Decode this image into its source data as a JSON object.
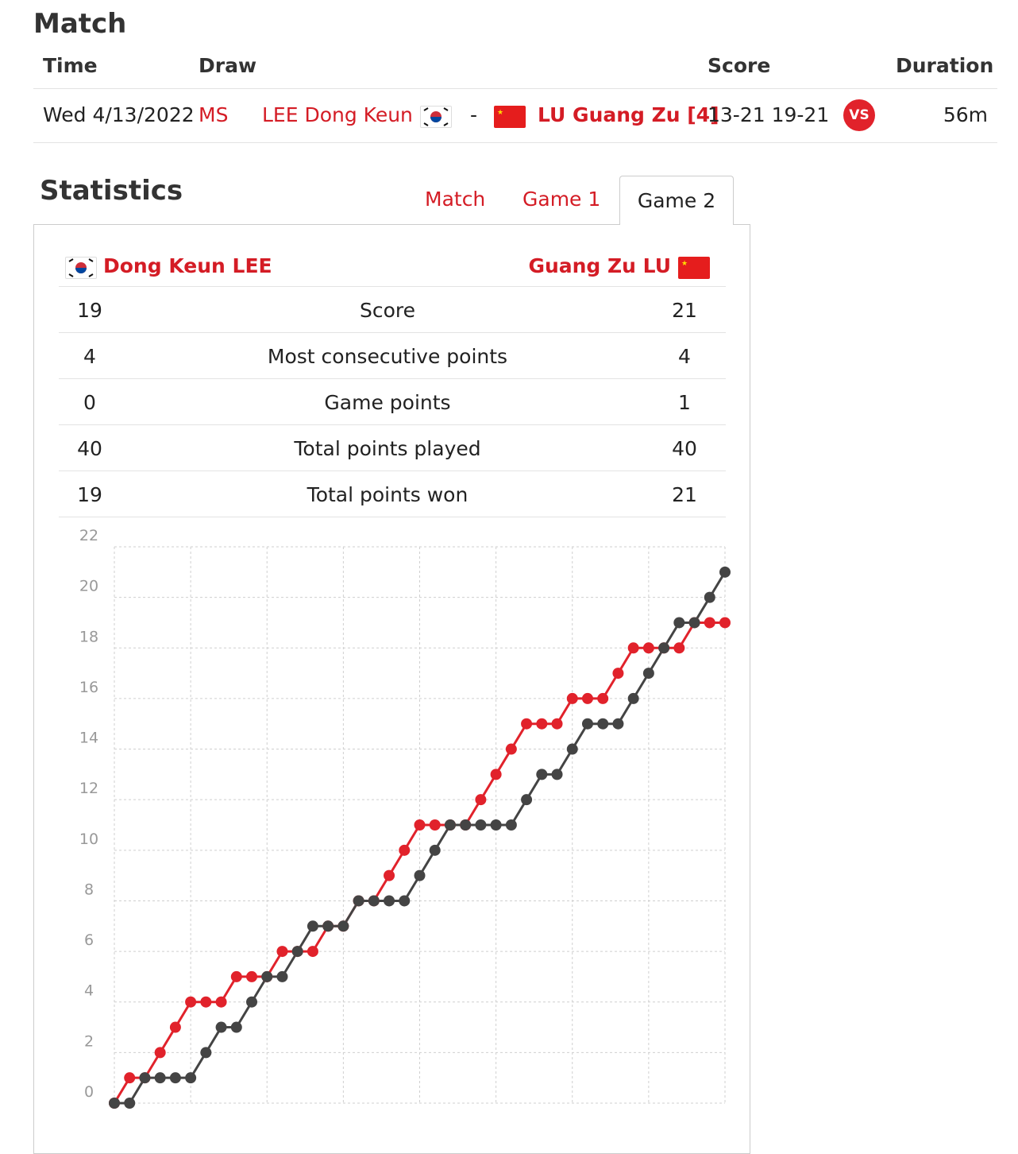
{
  "match": {
    "heading": "Match",
    "headers": {
      "time": "Time",
      "draw": "Draw",
      "score": "Score",
      "duration": "Duration"
    },
    "row": {
      "time": "Wed 4/13/2022",
      "draw": "MS",
      "player1": "LEE Dong Keun",
      "separator": "-",
      "player2": "LU Guang Zu [4]",
      "score": "13-21 19-21",
      "vs_badge": "VS",
      "duration": "56m"
    }
  },
  "statistics": {
    "heading": "Statistics",
    "tabs": [
      "Match",
      "Game 1",
      "Game 2"
    ],
    "active_tab": "Game 2",
    "player1_name": "Dong Keun LEE",
    "player2_name": "Guang Zu LU",
    "rows": [
      {
        "left": "19",
        "label": "Score",
        "right": "21"
      },
      {
        "left": "4",
        "label": "Most consecutive points",
        "right": "4"
      },
      {
        "left": "0",
        "label": "Game points",
        "right": "1"
      },
      {
        "left": "40",
        "label": "Total points played",
        "right": "40"
      },
      {
        "left": "19",
        "label": "Total points won",
        "right": "21"
      }
    ]
  },
  "colors": {
    "accent": "#d41c25",
    "player1_line": "#e1222b",
    "player2_line": "#444444"
  },
  "chart_data": {
    "type": "line",
    "title": "",
    "xlabel": "",
    "ylabel": "",
    "ylim": [
      0,
      22
    ],
    "yticks": [
      0,
      2,
      4,
      6,
      8,
      10,
      12,
      14,
      16,
      18,
      20,
      22
    ],
    "x": [
      0,
      1,
      2,
      3,
      4,
      5,
      6,
      7,
      8,
      9,
      10,
      11,
      12,
      13,
      14,
      15,
      16,
      17,
      18,
      19,
      20,
      21,
      22,
      23,
      24,
      25,
      26,
      27,
      28,
      29,
      30,
      31,
      32,
      33,
      34,
      35,
      36,
      37,
      38,
      39,
      40
    ],
    "series": [
      {
        "name": "Dong Keun LEE",
        "values": [
          0,
          1,
          1,
          2,
          3,
          4,
          4,
          4,
          5,
          5,
          5,
          6,
          6,
          6,
          7,
          7,
          8,
          8,
          9,
          10,
          11,
          11,
          11,
          11,
          12,
          13,
          14,
          15,
          15,
          15,
          16,
          16,
          16,
          17,
          18,
          18,
          18,
          18,
          19,
          19,
          19
        ]
      },
      {
        "name": "Guang Zu LU",
        "values": [
          0,
          0,
          1,
          1,
          1,
          1,
          2,
          3,
          3,
          4,
          5,
          5,
          6,
          7,
          7,
          7,
          8,
          8,
          8,
          8,
          9,
          10,
          11,
          11,
          11,
          11,
          11,
          12,
          13,
          13,
          14,
          15,
          15,
          15,
          16,
          17,
          18,
          19,
          19,
          20,
          21
        ]
      }
    ]
  }
}
